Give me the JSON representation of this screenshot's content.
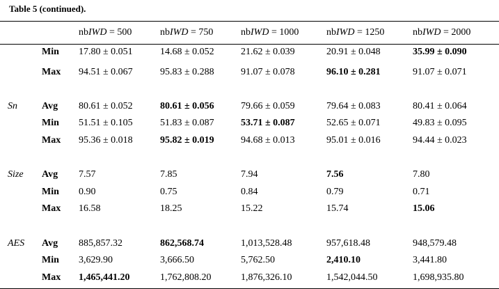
{
  "caption": "Table 5  (continued).",
  "columns": [
    {
      "prefix": "nb",
      "var": "IWD",
      "suffix": " = 500"
    },
    {
      "prefix": "nb",
      "var": "IWD",
      "suffix": " = 750"
    },
    {
      "prefix": "nb",
      "var": "IWD",
      "suffix": " = 1000"
    },
    {
      "prefix": "nb",
      "var": "IWD",
      "suffix": " = 1250"
    },
    {
      "prefix": "nb",
      "var": "IWD",
      "suffix": " = 2000"
    }
  ],
  "rows": [
    {
      "group": "",
      "label": "Min",
      "cells": [
        {
          "text": "17.80 ± 0.051",
          "bold": false
        },
        {
          "text": "14.68 ± 0.052",
          "bold": false
        },
        {
          "text": "21.62 ± 0.039",
          "bold": false
        },
        {
          "text": "20.91 ± 0.048",
          "bold": false
        },
        {
          "text": "35.99 ± 0.090",
          "bold": true
        }
      ]
    },
    {
      "group": "",
      "label": "Max",
      "cells": [
        {
          "text": "94.51 ± 0.067",
          "bold": false
        },
        {
          "text": "95.83 ± 0.288",
          "bold": false
        },
        {
          "text": "91.07 ± 0.078",
          "bold": false
        },
        {
          "text": "96.10 ± 0.281",
          "bold": true
        },
        {
          "text": "91.07 ± 0.071",
          "bold": false
        }
      ]
    },
    {
      "group": "Sn",
      "label": "Avg",
      "cells": [
        {
          "text": "80.61 ± 0.052",
          "bold": false
        },
        {
          "text": "80.61 ± 0.056",
          "bold": true
        },
        {
          "text": "79.66 ± 0.059",
          "bold": false
        },
        {
          "text": "79.64 ± 0.083",
          "bold": false
        },
        {
          "text": "80.41 ± 0.064",
          "bold": false
        }
      ]
    },
    {
      "group": "",
      "label": "Min",
      "cells": [
        {
          "text": "51.51 ± 0.105",
          "bold": false
        },
        {
          "text": "51.83 ± 0.087",
          "bold": false
        },
        {
          "text": "53.71 ± 0.087",
          "bold": true
        },
        {
          "text": "52.65 ± 0.071",
          "bold": false
        },
        {
          "text": "49.83 ± 0.095",
          "bold": false
        }
      ]
    },
    {
      "group": "",
      "label": "Max",
      "cells": [
        {
          "text": "95.36 ± 0.018",
          "bold": false
        },
        {
          "text": "95.82 ± 0.019",
          "bold": true
        },
        {
          "text": "94.68 ± 0.013",
          "bold": false
        },
        {
          "text": "95.01 ± 0.016",
          "bold": false
        },
        {
          "text": "94.44 ± 0.023",
          "bold": false
        }
      ]
    },
    {
      "group": "Size",
      "label": "Avg",
      "cells": [
        {
          "text": "7.57",
          "bold": false
        },
        {
          "text": "7.85",
          "bold": false
        },
        {
          "text": "7.94",
          "bold": false
        },
        {
          "text": "7.56",
          "bold": true
        },
        {
          "text": "7.80",
          "bold": false
        }
      ]
    },
    {
      "group": "",
      "label": "Min",
      "cells": [
        {
          "text": "0.90",
          "bold": false
        },
        {
          "text": "0.75",
          "bold": false
        },
        {
          "text": "0.84",
          "bold": false
        },
        {
          "text": "0.79",
          "bold": false
        },
        {
          "text": "0.71",
          "bold": false
        }
      ]
    },
    {
      "group": "",
      "label": "Max",
      "cells": [
        {
          "text": "16.58",
          "bold": false
        },
        {
          "text": "18.25",
          "bold": false
        },
        {
          "text": "15.22",
          "bold": false
        },
        {
          "text": "15.74",
          "bold": false
        },
        {
          "text": "15.06",
          "bold": true
        }
      ]
    },
    {
      "group": "AES",
      "label": "Avg",
      "cells": [
        {
          "text": "885,857.32",
          "bold": false
        },
        {
          "text": "862,568.74",
          "bold": true
        },
        {
          "text": "1,013,528.48",
          "bold": false
        },
        {
          "text": "957,618.48",
          "bold": false
        },
        {
          "text": "948,579.48",
          "bold": false
        }
      ]
    },
    {
      "group": "",
      "label": "Min",
      "cells": [
        {
          "text": "3,629.90",
          "bold": false
        },
        {
          "text": "3,666.50",
          "bold": false
        },
        {
          "text": "5,762.50",
          "bold": false
        },
        {
          "text": "2,410.10",
          "bold": true
        },
        {
          "text": "3,441.80",
          "bold": false
        }
      ]
    },
    {
      "group": "",
      "label": "Max",
      "cells": [
        {
          "text": "1,465,441.20",
          "bold": true
        },
        {
          "text": "1,762,808.20",
          "bold": false
        },
        {
          "text": "1,876,326.10",
          "bold": false
        },
        {
          "text": "1,542,044.50",
          "bold": false
        },
        {
          "text": "1,698,935.80",
          "bold": false
        }
      ]
    }
  ]
}
